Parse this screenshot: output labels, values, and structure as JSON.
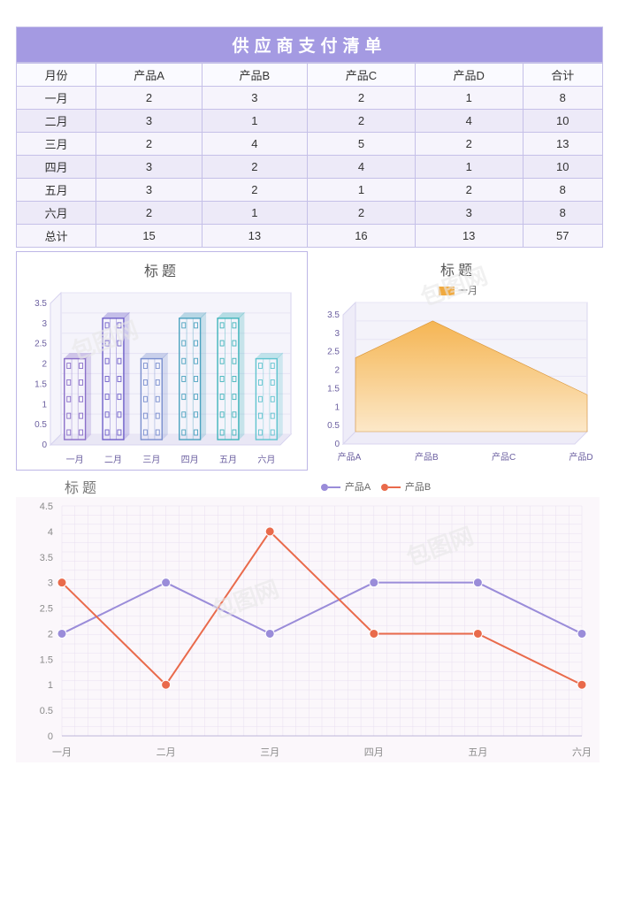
{
  "header": {
    "title": "供应商支付清单"
  },
  "table": {
    "columns": [
      "月份",
      "产品A",
      "产品B",
      "产品C",
      "产品D",
      "合计"
    ],
    "rows": [
      [
        "一月",
        "2",
        "3",
        "2",
        "1",
        "8"
      ],
      [
        "二月",
        "3",
        "1",
        "2",
        "4",
        "10"
      ],
      [
        "三月",
        "2",
        "4",
        "5",
        "2",
        "13"
      ],
      [
        "四月",
        "3",
        "2",
        "4",
        "1",
        "10"
      ],
      [
        "五月",
        "3",
        "2",
        "1",
        "2",
        "8"
      ],
      [
        "六月",
        "2",
        "1",
        "2",
        "3",
        "8"
      ],
      [
        "总计",
        "15",
        "13",
        "16",
        "13",
        "57"
      ]
    ],
    "border_color": "#c5c0e8",
    "row_bg_light": "#f6f4fc",
    "row_bg_dark": "#edeaf8"
  },
  "bar_chart": {
    "title": "标题",
    "type": "bar",
    "categories": [
      "一月",
      "二月",
      "三月",
      "四月",
      "五月",
      "六月"
    ],
    "values": [
      2,
      3,
      2,
      3,
      3,
      2
    ],
    "bar_colors": [
      "#8a6fc9",
      "#6f5fc9",
      "#7a8fcf",
      "#4aa2bf",
      "#3fb4bb",
      "#5fc4cf"
    ],
    "ylim": [
      0,
      3.5
    ],
    "ytick_step": 0.5,
    "title_fontsize": 16,
    "axis_fontsize": 10,
    "floor_color": "#e9e7f5",
    "wall_color": "#f5f4fb"
  },
  "area_chart": {
    "title": "标题",
    "type": "area",
    "legend_label": "一月",
    "legend_color": "#f0a93e",
    "categories": [
      "产品A",
      "产品B",
      "产品C",
      "产品D"
    ],
    "values": [
      2,
      3,
      2,
      1
    ],
    "ylim": [
      0,
      3.5
    ],
    "ytick_step": 0.5,
    "fill_top": "#f6b24a",
    "fill_bottom": "#fde8c6",
    "wall_color": "#f4f3fa",
    "axis_fontsize": 10
  },
  "line_chart": {
    "title": "标题",
    "type": "line",
    "categories": [
      "一月",
      "二月",
      "三月",
      "四月",
      "五月",
      "六月"
    ],
    "series": [
      {
        "name": "产品A",
        "color": "#9a8cd9",
        "values": [
          2,
          3,
          2,
          3,
          3,
          2
        ]
      },
      {
        "name": "产品B",
        "color": "#e96a4b",
        "values": [
          3,
          1,
          4,
          2,
          2,
          1
        ]
      }
    ],
    "ylim": [
      0,
      4.5
    ],
    "ytick_step": 0.5,
    "grid_color": "#e8dff0",
    "bg_color": "#fbf7fb",
    "marker_size": 5,
    "line_width": 2,
    "axis_fontsize": 11
  },
  "watermarks": [
    "包图网",
    "包图网",
    "包图网",
    "包图网"
  ]
}
